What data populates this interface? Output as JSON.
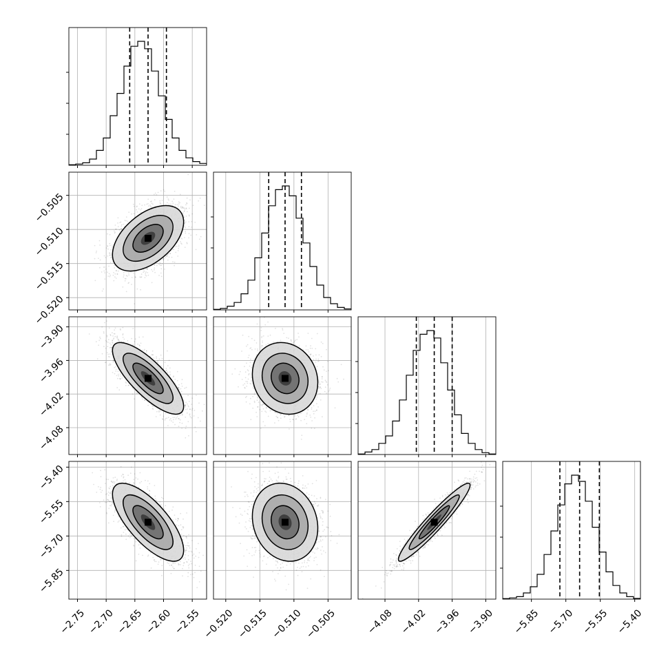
{
  "chart_data": {
    "type": "corner",
    "grid": true,
    "colors": {
      "points": "#000000",
      "contour": "#000000",
      "hist": "#000000",
      "grid": "#b0b0b0"
    },
    "parameters": [
      {
        "id": "p1",
        "range": [
          -2.765,
          -2.525
        ],
        "mean": -2.627,
        "sd": 0.031,
        "quantiles": [
          -2.659,
          -2.627,
          -2.595
        ],
        "ticks": [
          -2.75,
          -2.7,
          -2.65,
          -2.6,
          -2.55
        ],
        "tick_labels": [
          "−2.75",
          "−2.70",
          "−2.65",
          "−2.60",
          "−2.55"
        ],
        "hist": [
          0.004,
          0.01,
          0.02,
          0.05,
          0.12,
          0.22,
          0.4,
          0.58,
          0.8,
          0.96,
          1.0,
          0.94,
          0.76,
          0.56,
          0.37,
          0.22,
          0.12,
          0.06,
          0.03,
          0.015
        ]
      },
      {
        "id": "p2",
        "range": [
          -0.5218,
          -0.5016
        ],
        "mean": -0.5113,
        "sd": 0.0024,
        "quantiles": [
          -0.5137,
          -0.5113,
          -0.5089
        ],
        "ticks": [
          -0.52,
          -0.515,
          -0.51,
          -0.505
        ],
        "tick_labels": [
          "−0.520",
          "−0.515",
          "−0.510",
          "−0.505"
        ],
        "hist": [
          0.004,
          0.012,
          0.03,
          0.06,
          0.13,
          0.24,
          0.42,
          0.62,
          0.84,
          0.97,
          1.0,
          0.92,
          0.74,
          0.54,
          0.35,
          0.2,
          0.1,
          0.05,
          0.02,
          0.008
        ]
      },
      {
        "id": "p3",
        "range": [
          -4.128,
          -3.882
        ],
        "mean": -3.992,
        "sd": 0.032,
        "quantiles": [
          -4.024,
          -3.992,
          -3.96
        ],
        "ticks": [
          -4.08,
          -4.02,
          -3.96,
          -3.9
        ],
        "tick_labels": [
          "−4.08",
          "−4.02",
          "−3.96",
          "−3.90"
        ],
        "hist": [
          0.004,
          0.02,
          0.04,
          0.09,
          0.15,
          0.27,
          0.44,
          0.64,
          0.84,
          0.97,
          1.0,
          0.94,
          0.74,
          0.52,
          0.32,
          0.17,
          0.09,
          0.04,
          0.015,
          0.004
        ]
      },
      {
        "id": "p4",
        "range": [
          -5.975,
          -5.375
        ],
        "mean": -5.64,
        "sd": 0.085,
        "quantiles": [
          -5.726,
          -5.64,
          -5.554
        ],
        "ticks": [
          -5.85,
          -5.7,
          -5.55,
          -5.4
        ],
        "tick_labels": [
          "−5.85",
          "−5.70",
          "−5.55",
          "−5.40"
        ],
        "hist": [
          0.004,
          0.01,
          0.02,
          0.05,
          0.1,
          0.2,
          0.36,
          0.55,
          0.76,
          0.93,
          1.0,
          0.95,
          0.79,
          0.58,
          0.38,
          0.22,
          0.11,
          0.05,
          0.02,
          0.006
        ]
      }
    ],
    "correlations": {
      "2_1": 0.5,
      "3_1": -0.78,
      "3_2": -0.12,
      "4_1": -0.72,
      "4_2": -0.15,
      "4_3": 0.95
    }
  }
}
